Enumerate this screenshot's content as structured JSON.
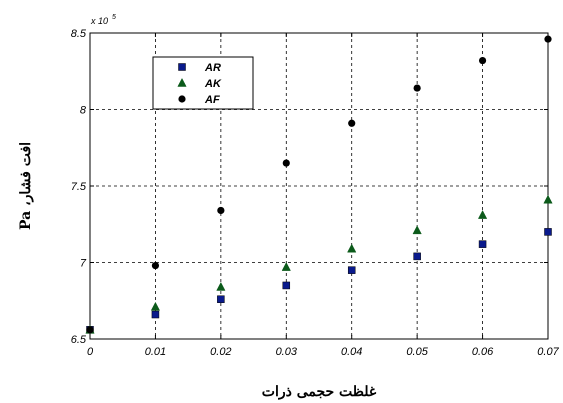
{
  "chart_data": {
    "type": "scatter",
    "title": "",
    "xlabel": "غلظت حجمی ذرات",
    "ylabel": "افت فشار، Pa",
    "y_multiplier_label": "x 10",
    "y_multiplier_exponent": "5",
    "x_ticks": [
      0,
      0.01,
      0.02,
      0.03,
      0.04,
      0.05,
      0.06,
      0.07
    ],
    "x_tick_labels": [
      "0",
      "0.01",
      "0.02",
      "0.03",
      "0.04",
      "0.05",
      "0.06",
      "0.07"
    ],
    "y_ticks": [
      6.5,
      7,
      7.5,
      8,
      8.5
    ],
    "y_tick_labels": [
      "6.5",
      "7",
      "7.5",
      "8",
      "8.5"
    ],
    "xlim": [
      0,
      0.07
    ],
    "ylim": [
      6.5,
      8.5
    ],
    "grid": true,
    "legend_position": "top-left",
    "x": [
      0,
      0.01,
      0.02,
      0.03,
      0.04,
      0.05,
      0.06,
      0.07
    ],
    "series": [
      {
        "name": "AR",
        "marker": "square",
        "color": "#0a1a8c",
        "values": [
          6.56,
          6.66,
          6.76,
          6.85,
          6.95,
          7.04,
          7.12,
          7.2
        ]
      },
      {
        "name": "AK",
        "marker": "triangle",
        "color": "#0b5a1a",
        "values": [
          6.56,
          6.71,
          6.84,
          6.97,
          7.09,
          7.21,
          7.31,
          7.41
        ]
      },
      {
        "name": "AF",
        "marker": "circle",
        "color": "#000000",
        "values": [
          6.56,
          6.98,
          7.34,
          7.65,
          7.91,
          8.14,
          8.32,
          8.46
        ]
      }
    ]
  }
}
